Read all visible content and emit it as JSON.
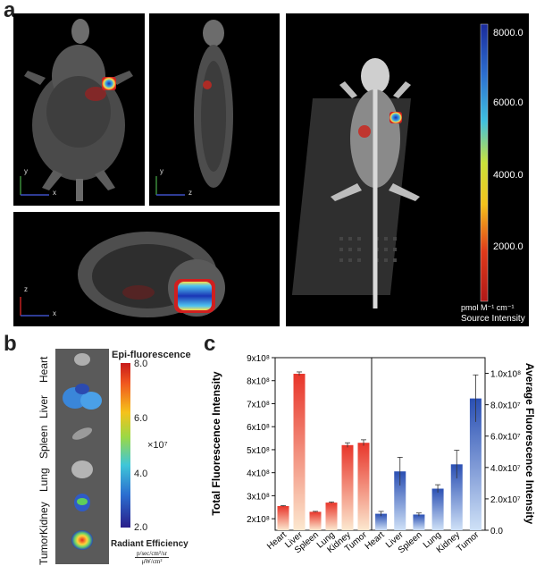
{
  "panel_a": {
    "letter": "a",
    "views": [
      {
        "axis_v": "y",
        "axis_h": "x"
      },
      {
        "axis_v": "y",
        "axis_h": "z"
      },
      {
        "axis_v": "z",
        "axis_h": "x"
      }
    ],
    "colorbar": {
      "ticks": [
        "8000.0",
        "6000.0",
        "4000.0",
        "2000.0"
      ],
      "unit": "pmol M⁻¹ cm⁻¹",
      "title": "Source Intensity"
    }
  },
  "panel_b": {
    "letter": "b",
    "organs": [
      "Heart",
      "Liver",
      "Spleen",
      "Lung",
      "Kidney",
      "Tumor"
    ],
    "colorbar": {
      "title": "Epi-fluorescence",
      "ticks": [
        "8.0",
        "6.0",
        "4.0",
        "2.0"
      ],
      "multiplier": "×10⁷",
      "footer": "Radiant Efficiency",
      "unit_num": "p/sec/cm²/sr",
      "unit_den": "μW/cm²"
    }
  },
  "panel_c": {
    "letter": "c"
  },
  "chart_data": {
    "type": "bar",
    "categories": [
      "Heart",
      "Liver",
      "Spleen",
      "Lung",
      "Kidney",
      "Tumor"
    ],
    "left": {
      "ylabel": "Total Fluorescence Intensity",
      "ylim": [
        150000000.0,
        900000000.0
      ],
      "tick_labels": [
        "9x10⁸",
        "8x10⁸",
        "7x10⁸",
        "6x10⁸",
        "5x10⁸",
        "4x10⁸",
        "3x10⁸",
        "2x10⁸"
      ],
      "tick_values": [
        900000000.0,
        800000000.0,
        700000000.0,
        600000000.0,
        500000000.0,
        400000000.0,
        300000000.0,
        200000000.0
      ],
      "values": [
        255000000.0,
        830000000.0,
        230000000.0,
        270000000.0,
        520000000.0,
        530000000.0
      ],
      "errors": [
        2000000.0,
        8000000.0,
        2000000.0,
        3000000.0,
        10000000.0,
        13000000.0
      ],
      "color_top": "#e8352a",
      "color_bottom": "#fce8cf"
    },
    "right": {
      "ylabel": "Average Fluorescence Intensity",
      "ylim": [
        0,
        110000000.0
      ],
      "tick_labels": [
        "1.0x10⁸",
        "8.0x10⁷",
        "6.0x10⁷",
        "4.0x10⁷",
        "2.0x10⁷",
        "0.0"
      ],
      "tick_values": [
        100000000.0,
        80000000.0,
        60000000.0,
        40000000.0,
        20000000.0,
        0
      ],
      "values": [
        10500000.0,
        37500000.0,
        10000000.0,
        26500000.0,
        42000000.0,
        84000000.0
      ],
      "errors": [
        1500000.0,
        9000000.0,
        1000000.0,
        2500000.0,
        9000000.0,
        15000000.0
      ],
      "color_top": "#2a4fb3",
      "color_bottom": "#cfe1f7"
    }
  }
}
